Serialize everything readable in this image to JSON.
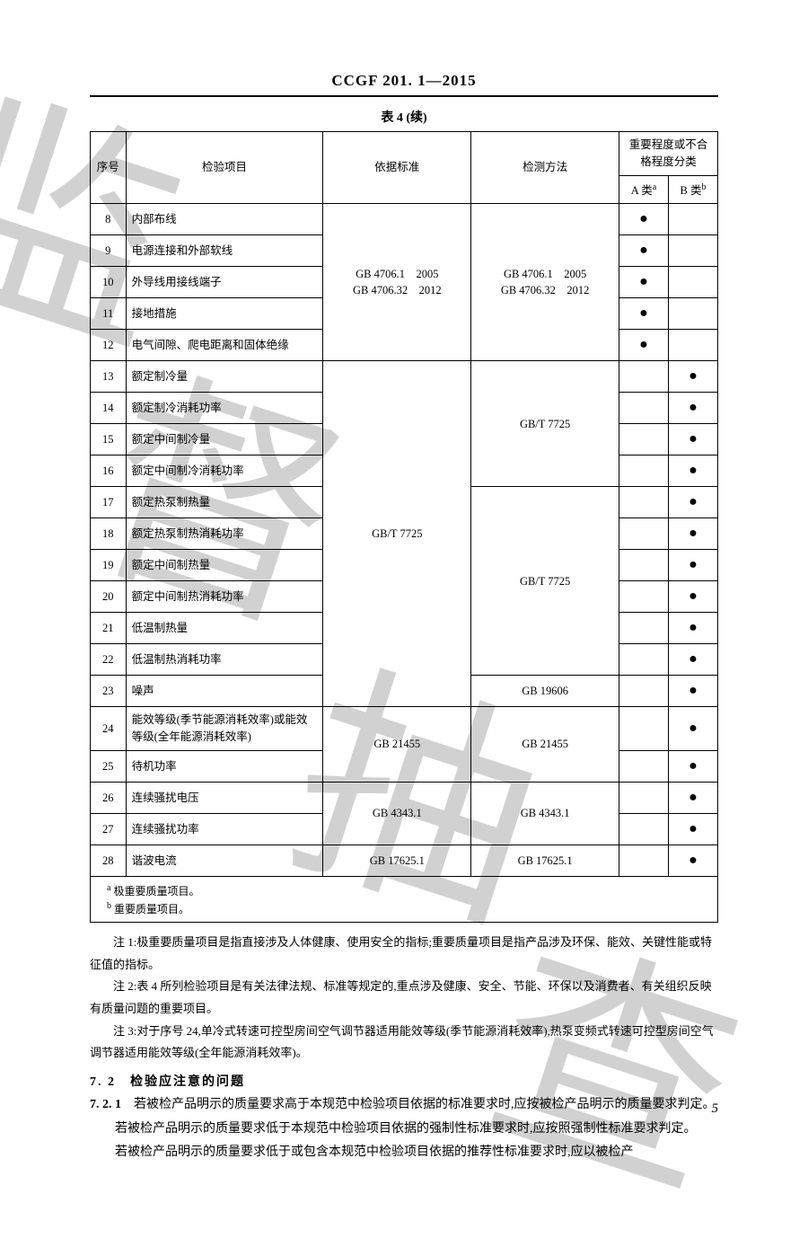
{
  "doc_header": "CCGF 201. 1—2015",
  "table_caption": "表 4 (续)",
  "watermark_chars": [
    "监",
    "督",
    "抽",
    "查"
  ],
  "page_number": "5",
  "headers": {
    "seq": "序号",
    "item": "检验项目",
    "standard": "依据标准",
    "method": "检测方法",
    "class_group": "重要程度或不合格程度分类",
    "class_a": "A 类",
    "class_a_sup": "a",
    "class_b": "B 类",
    "class_b_sup": "b"
  },
  "std_group1": "GB 4706.1　2005\nGB 4706.32　2012",
  "meth_group1": "GB 4706.1　2005\nGB 4706.32　2012",
  "std_group2": "GB/T 7725",
  "meth_group2_a": "GB/T 7725",
  "meth_group2_b": "GB/T 7725",
  "meth_group2_c": "GB 19606",
  "std_group3": "GB 21455",
  "meth_group3": "GB 21455",
  "std_group4": "GB 4343.1",
  "meth_group4": "GB 4343.1",
  "std_group5": "GB 17625.1",
  "meth_group5": "GB 17625.1",
  "rows": [
    {
      "n": "8",
      "item": "内部布线",
      "a": "●",
      "b": ""
    },
    {
      "n": "9",
      "item": "电源连接和外部软线",
      "a": "●",
      "b": ""
    },
    {
      "n": "10",
      "item": "外导线用接线端子",
      "a": "●",
      "b": ""
    },
    {
      "n": "11",
      "item": "接地措施",
      "a": "●",
      "b": ""
    },
    {
      "n": "12",
      "item": "电气间隙、爬电距离和固体绝缘",
      "a": "●",
      "b": ""
    },
    {
      "n": "13",
      "item": "额定制冷量",
      "a": "",
      "b": "●"
    },
    {
      "n": "14",
      "item": "额定制冷消耗功率",
      "a": "",
      "b": "●"
    },
    {
      "n": "15",
      "item": "额定中间制冷量",
      "a": "",
      "b": "●"
    },
    {
      "n": "16",
      "item": "额定中间制冷消耗功率",
      "a": "",
      "b": "●"
    },
    {
      "n": "17",
      "item": "额定热泵制热量",
      "a": "",
      "b": "●"
    },
    {
      "n": "18",
      "item": "额定热泵制热消耗功率",
      "a": "",
      "b": "●"
    },
    {
      "n": "19",
      "item": "额定中间制热量",
      "a": "",
      "b": "●"
    },
    {
      "n": "20",
      "item": "额定中间制热消耗功率",
      "a": "",
      "b": "●"
    },
    {
      "n": "21",
      "item": "低温制热量",
      "a": "",
      "b": "●"
    },
    {
      "n": "22",
      "item": "低温制热消耗功率",
      "a": "",
      "b": "●"
    },
    {
      "n": "23",
      "item": "噪声",
      "a": "",
      "b": "●"
    },
    {
      "n": "24",
      "item": "能效等级(季节能源消耗效率)或能效等级(全年能源消耗效率)",
      "a": "",
      "b": "●"
    },
    {
      "n": "25",
      "item": "待机功率",
      "a": "",
      "b": "●"
    },
    {
      "n": "26",
      "item": "连续骚扰电压",
      "a": "",
      "b": "●"
    },
    {
      "n": "27",
      "item": "连续骚扰功率",
      "a": "",
      "b": "●"
    },
    {
      "n": "28",
      "item": "谐波电流",
      "a": "",
      "b": "●"
    }
  ],
  "footnote_a": "极重要质量项目。",
  "footnote_a_sup": "a",
  "footnote_b": "重要质量项目。",
  "footnote_b_sup": "b",
  "notes": {
    "n1": "注 1:极重要质量项目是指直接涉及人体健康、使用安全的指标;重要质量项目是指产品涉及环保、能效、关键性能或特征值的指标。",
    "n2": "注 2:表 4 所列检验项目是有关法律法规、标准等规定的,重点涉及健康、安全、节能、环保以及消费者、有关组织反映有质量问题的重要项目。",
    "n3": "注 3:对于序号 24,单冷式转速可控型房间空气调节器适用能效等级(季节能源消耗效率),热泵变频式转速可控型房间空气调节器适用能效等级(全年能源消耗效率)。"
  },
  "section_7_2": "7. 2　检验应注意的问题",
  "p_7_2_1_lead": "7. 2. 1",
  "p_7_2_1_body": "若被检产品明示的质量要求高于本规范中检验项目依据的标准要求时,应按被检产品明示的质量要求判定。",
  "p_7_2_1_p2": "若被检产品明示的质量要求低于本规范中检验项目依据的强制性标准要求时,应按照强制性标准要求判定。",
  "p_7_2_1_p3": "若被检产品明示的质量要求低于或包含本规范中检验项目依据的推荐性标准要求时,应以被检产"
}
